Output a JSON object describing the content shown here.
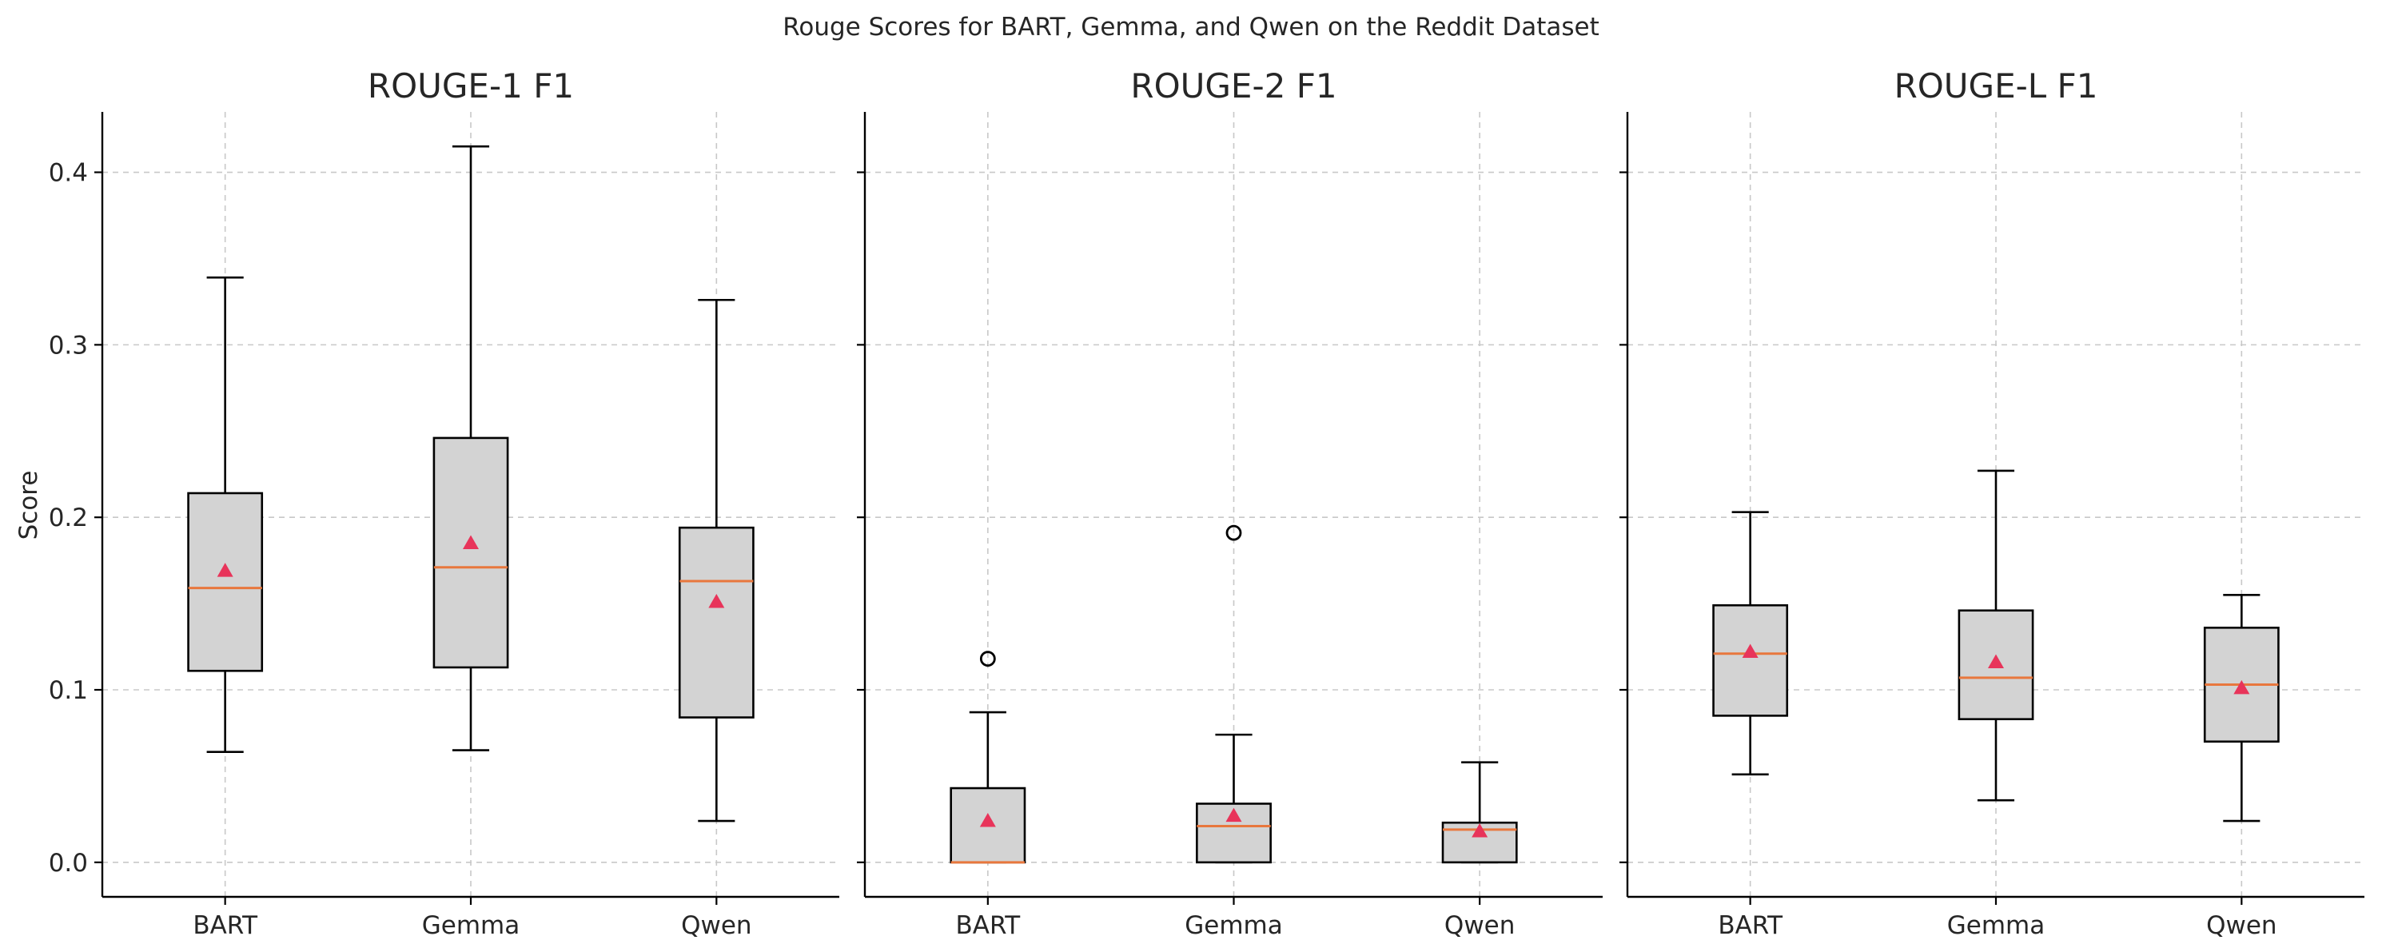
{
  "chart_data": {
    "type": "boxplot",
    "title": "Rouge Scores for BART, Gemma, and Qwen on the Reddit Dataset",
    "ylabel": "Score",
    "ylim": [
      -0.02,
      0.435
    ],
    "yticks": [
      0.0,
      0.1,
      0.2,
      0.3,
      0.4
    ],
    "ytick_labels": [
      "0.0",
      "0.1",
      "0.2",
      "0.3",
      "0.4"
    ],
    "shared_y": true,
    "grid": true,
    "colors": {
      "box_fill": "#d3d3d3",
      "median": "#e8773d",
      "mean": "#e8345a"
    },
    "categories": [
      "BART",
      "Gemma",
      "Qwen"
    ],
    "panels": [
      {
        "title": "ROUGE-1 F1",
        "boxes": [
          {
            "name": "BART",
            "whislo": 0.064,
            "q1": 0.111,
            "med": 0.159,
            "q3": 0.214,
            "whishi": 0.339,
            "mean": 0.169,
            "fliers": []
          },
          {
            "name": "Gemma",
            "whislo": 0.065,
            "q1": 0.113,
            "med": 0.171,
            "q3": 0.246,
            "whishi": 0.415,
            "mean": 0.185,
            "fliers": []
          },
          {
            "name": "Qwen",
            "whislo": 0.024,
            "q1": 0.084,
            "med": 0.163,
            "q3": 0.194,
            "whishi": 0.326,
            "mean": 0.151,
            "fliers": []
          }
        ]
      },
      {
        "title": "ROUGE-2 F1",
        "boxes": [
          {
            "name": "BART",
            "whislo": 0.0,
            "q1": 0.0,
            "med": 0.0,
            "q3": 0.043,
            "whishi": 0.087,
            "mean": 0.024,
            "fliers": [
              0.118
            ]
          },
          {
            "name": "Gemma",
            "whislo": 0.0,
            "q1": 0.0,
            "med": 0.021,
            "q3": 0.034,
            "whishi": 0.074,
            "mean": 0.027,
            "fliers": [
              0.191
            ]
          },
          {
            "name": "Qwen",
            "whislo": 0.0,
            "q1": 0.0,
            "med": 0.019,
            "q3": 0.023,
            "whishi": 0.058,
            "mean": 0.018,
            "fliers": []
          }
        ]
      },
      {
        "title": "ROUGE-L F1",
        "boxes": [
          {
            "name": "BART",
            "whislo": 0.051,
            "q1": 0.085,
            "med": 0.121,
            "q3": 0.149,
            "whishi": 0.203,
            "mean": 0.122,
            "fliers": []
          },
          {
            "name": "Gemma",
            "whislo": 0.036,
            "q1": 0.083,
            "med": 0.107,
            "q3": 0.146,
            "whishi": 0.227,
            "mean": 0.116,
            "fliers": []
          },
          {
            "name": "Qwen",
            "whislo": 0.024,
            "q1": 0.07,
            "med": 0.103,
            "q3": 0.136,
            "whishi": 0.155,
            "mean": 0.101,
            "fliers": []
          }
        ]
      }
    ]
  }
}
